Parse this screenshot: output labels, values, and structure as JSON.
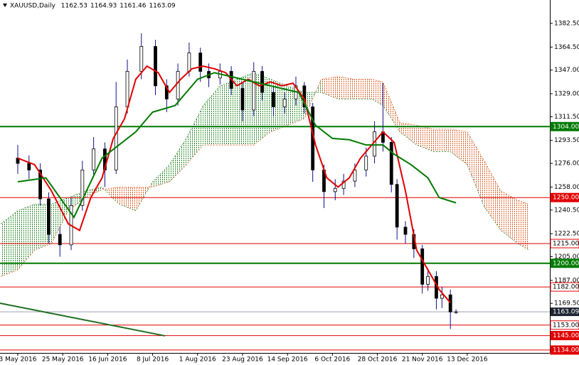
{
  "chart_data": {
    "type": "candlestick",
    "symbol": "XAUUSD,Daily",
    "ohlc": [
      1162.53,
      1164.93,
      1161.46,
      1163.09
    ],
    "x": [
      0,
      4,
      8,
      11,
      15,
      19,
      23,
      27,
      31,
      35,
      39,
      44,
      49,
      53,
      57,
      61,
      65,
      68,
      72,
      76,
      80,
      84,
      87,
      91,
      95,
      99,
      102,
      105,
      109,
      113,
      116,
      120,
      124,
      127,
      130,
      133,
      135,
      138,
      141,
      144,
      146,
      149,
      151,
      154,
      156
    ],
    "open": [
      1280,
      1276,
      1271,
      1249,
      1222,
      1214,
      1244,
      1271,
      1287,
      1271,
      1319,
      1346,
      1365,
      1335,
      1325,
      1346,
      1360,
      1346,
      1341,
      1346,
      1333,
      1316.6,
      1346,
      1330,
      1319,
      1325,
      1335,
      1319,
      1271,
      1254.5,
      1257,
      1262.5,
      1271,
      1281.5,
      1300,
      1292,
      1260,
      1227.5,
      1222,
      1211,
      1184,
      1190,
      1173.4,
      1176,
      1162.53
    ],
    "high": [
      1290,
      1282,
      1276,
      1254,
      1228,
      1250,
      1278,
      1296,
      1292,
      1338,
      1355,
      1375,
      1370,
      1340,
      1352,
      1368,
      1364,
      1352,
      1352,
      1350,
      1338,
      1353,
      1350,
      1335,
      1330,
      1342,
      1338,
      1322,
      1275,
      1264,
      1268,
      1276,
      1288,
      1308,
      1337,
      1296,
      1264,
      1232,
      1226,
      1214,
      1196,
      1194,
      1182,
      1180,
      1164.93
    ],
    "low": [
      1268,
      1264,
      1244,
      1215,
      1205,
      1210,
      1240,
      1266,
      1258,
      1268,
      1314,
      1340,
      1328,
      1315,
      1320,
      1342,
      1338,
      1334,
      1336,
      1328,
      1308,
      1312,
      1324,
      1312,
      1314,
      1320,
      1314,
      1262,
      1242,
      1248,
      1252,
      1258,
      1266,
      1276,
      1285,
      1254,
      1218,
      1215,
      1204,
      1177,
      1179,
      1165,
      1166,
      1150,
      1161.46
    ],
    "close": [
      1276,
      1271,
      1249,
      1222,
      1214,
      1244,
      1271,
      1287,
      1271,
      1319,
      1346,
      1365,
      1335,
      1325,
      1346,
      1360,
      1346,
      1341,
      1346,
      1333,
      1316.6,
      1346,
      1330,
      1319,
      1325,
      1335,
      1319,
      1271,
      1254.5,
      1257,
      1262.5,
      1271,
      1281.5,
      1300,
      1292,
      1260,
      1227.5,
      1222,
      1211,
      1184,
      1190,
      1173.4,
      1176,
      1163,
      1163.09
    ],
    "candle_colors": {
      "up": "#ffffff",
      "down": "#000000",
      "wick": "#10108a"
    },
    "xlim": [
      -6.33,
      189.4
    ],
    "xticks": [
      {
        "value": 0,
        "label": "3 May 2016"
      },
      {
        "value": 16,
        "label": "25 May 2016"
      },
      {
        "value": 32,
        "label": "16 Jun 2016"
      },
      {
        "value": 48,
        "label": "8 Jul 2016"
      },
      {
        "value": 64,
        "label": "1 Aug 2016"
      },
      {
        "value": 80,
        "label": "23 Aug 2016"
      },
      {
        "value": 96,
        "label": "14 Sep 2016"
      },
      {
        "value": 112,
        "label": "6 Oct 2016"
      },
      {
        "value": 128,
        "label": "28 Oct 2016"
      },
      {
        "value": 144,
        "label": "21 Nov 2016"
      },
      {
        "value": 160,
        "label": "13 Dec 2016"
      }
    ],
    "ylim": [
      1131.8,
      1400.3
    ],
    "yticks": [
      {
        "value": 1382.5,
        "label": "1382.50"
      },
      {
        "value": 1364.5,
        "label": "1364.50"
      },
      {
        "value": 1347,
        "label": "1347.00"
      },
      {
        "value": 1329,
        "label": "1329.00"
      },
      {
        "value": 1311.5,
        "label": "1311.50"
      },
      {
        "value": 1293.5,
        "label": "1293.50"
      },
      {
        "value": 1276,
        "label": "1276.00"
      },
      {
        "value": 1258,
        "label": "1258.00"
      },
      {
        "value": 1240.5,
        "label": "1240.50"
      },
      {
        "value": 1222.5,
        "label": "1222.50"
      },
      {
        "value": 1205,
        "label": "1205.00"
      },
      {
        "value": 1187,
        "label": "1187.00"
      },
      {
        "value": 1169.5,
        "label": "1169.50"
      }
    ],
    "lines": [
      {
        "color": "#e00000",
        "x": [
          0,
          6,
          12,
          18,
          22,
          26,
          30,
          34,
          38,
          42,
          46,
          50,
          54,
          58,
          62,
          66,
          70,
          74,
          78,
          82,
          86,
          90,
          94,
          98,
          102,
          106,
          110,
          114,
          118,
          122,
          126,
          130,
          134,
          138,
          142,
          146,
          150,
          154
        ],
        "values": [
          1280,
          1275,
          1255,
          1230,
          1225,
          1250,
          1265,
          1295,
          1310,
          1340,
          1350,
          1345,
          1330,
          1340,
          1348,
          1350,
          1348,
          1345,
          1335,
          1340,
          1335,
          1338,
          1335,
          1337,
          1325,
          1290,
          1265,
          1258,
          1265,
          1280,
          1290,
          1300,
          1292,
          1255,
          1210,
          1195,
          1180,
          1170
        ]
      },
      {
        "color": "#007a00",
        "x": [
          0,
          10,
          20,
          30,
          36,
          42,
          48,
          56,
          64,
          70,
          80,
          90,
          100,
          106,
          112,
          118,
          124,
          130,
          134,
          140,
          146,
          150,
          156
        ],
        "values": [
          1262,
          1265,
          1235,
          1280,
          1290,
          1300,
          1315,
          1320,
          1340,
          1345,
          1340,
          1335,
          1330,
          1305,
          1295,
          1294,
          1290,
          1290,
          1283,
          1275,
          1265,
          1250,
          1246
        ]
      }
    ],
    "cloud": {
      "x": [
        -6,
        0,
        6,
        12,
        18,
        24,
        30,
        36,
        42,
        48,
        54,
        60,
        66,
        72,
        78,
        84,
        90,
        96,
        102,
        108,
        114,
        120,
        126,
        130,
        136,
        142,
        148,
        154,
        160,
        166,
        172,
        178,
        182
      ],
      "span_a": [
        1230,
        1240,
        1245,
        1245,
        1250,
        1255,
        1258,
        1245,
        1240,
        1262,
        1275,
        1295,
        1320,
        1335,
        1340,
        1345,
        1340,
        1335,
        1330,
        1330,
        1325,
        1325,
        1325,
        1320,
        1300,
        1290,
        1285,
        1285,
        1275,
        1243,
        1225,
        1215,
        1210
      ],
      "span_b": [
        1190,
        1195,
        1210,
        1215,
        1240,
        1250,
        1256,
        1258,
        1258,
        1258,
        1262,
        1275,
        1290,
        1290,
        1290,
        1290,
        1300,
        1305,
        1310,
        1340,
        1342,
        1340,
        1340,
        1338,
        1307,
        1305,
        1302,
        1302,
        1300,
        1278,
        1255,
        1248,
        1245
      ],
      "bull_color": "#2e8b2e",
      "bear_color": "#e0602a"
    },
    "trendline": {
      "color": "#1f6e1f",
      "x": [
        -6.33,
        52.4
      ],
      "values": [
        1169.6,
        1144.8
      ]
    },
    "levels": [
      {
        "value": 1304,
        "label": "1304.00",
        "color": "#007a00",
        "width": 2,
        "label_fill": "#007a00",
        "label_color": "#ffffff"
      },
      {
        "value": 1250,
        "label": "1250.00",
        "color": "#e00000",
        "width": 1,
        "label_fill": "#e00000",
        "label_color": "#ffffff"
      },
      {
        "value": 1215,
        "label": "1215.00",
        "color": "#e00000",
        "width": 1,
        "label_fill": "#ffffff",
        "label_color": "#000000"
      },
      {
        "value": 1200,
        "label": "1200.00",
        "color": "#007a00",
        "width": 2,
        "label_fill": "#007a00",
        "label_color": "#ffffff"
      },
      {
        "value": 1182,
        "label": "1182.00",
        "color": "#e00000",
        "width": 1,
        "label_fill": "#ffffff",
        "label_color": "#000000"
      },
      {
        "value": 1153,
        "label": "1153.00",
        "color": "#e00000",
        "width": 1,
        "label_fill": "#ffffff",
        "label_color": "#000000"
      },
      {
        "value": 1145,
        "label": "1145.00",
        "color": "#e00000",
        "width": 1,
        "label_fill": "#e00000",
        "label_color": "#ffffff"
      },
      {
        "value": 1134,
        "label": "1134.00",
        "color": "#e00000",
        "width": 1,
        "label_fill": "#e00000",
        "label_color": "#ffffff"
      }
    ],
    "price": {
      "value": 1163.09,
      "label": "1163.09",
      "color": "#9aa5b0",
      "label_fill": "#1c2430",
      "label_color": "#ffffff"
    }
  }
}
